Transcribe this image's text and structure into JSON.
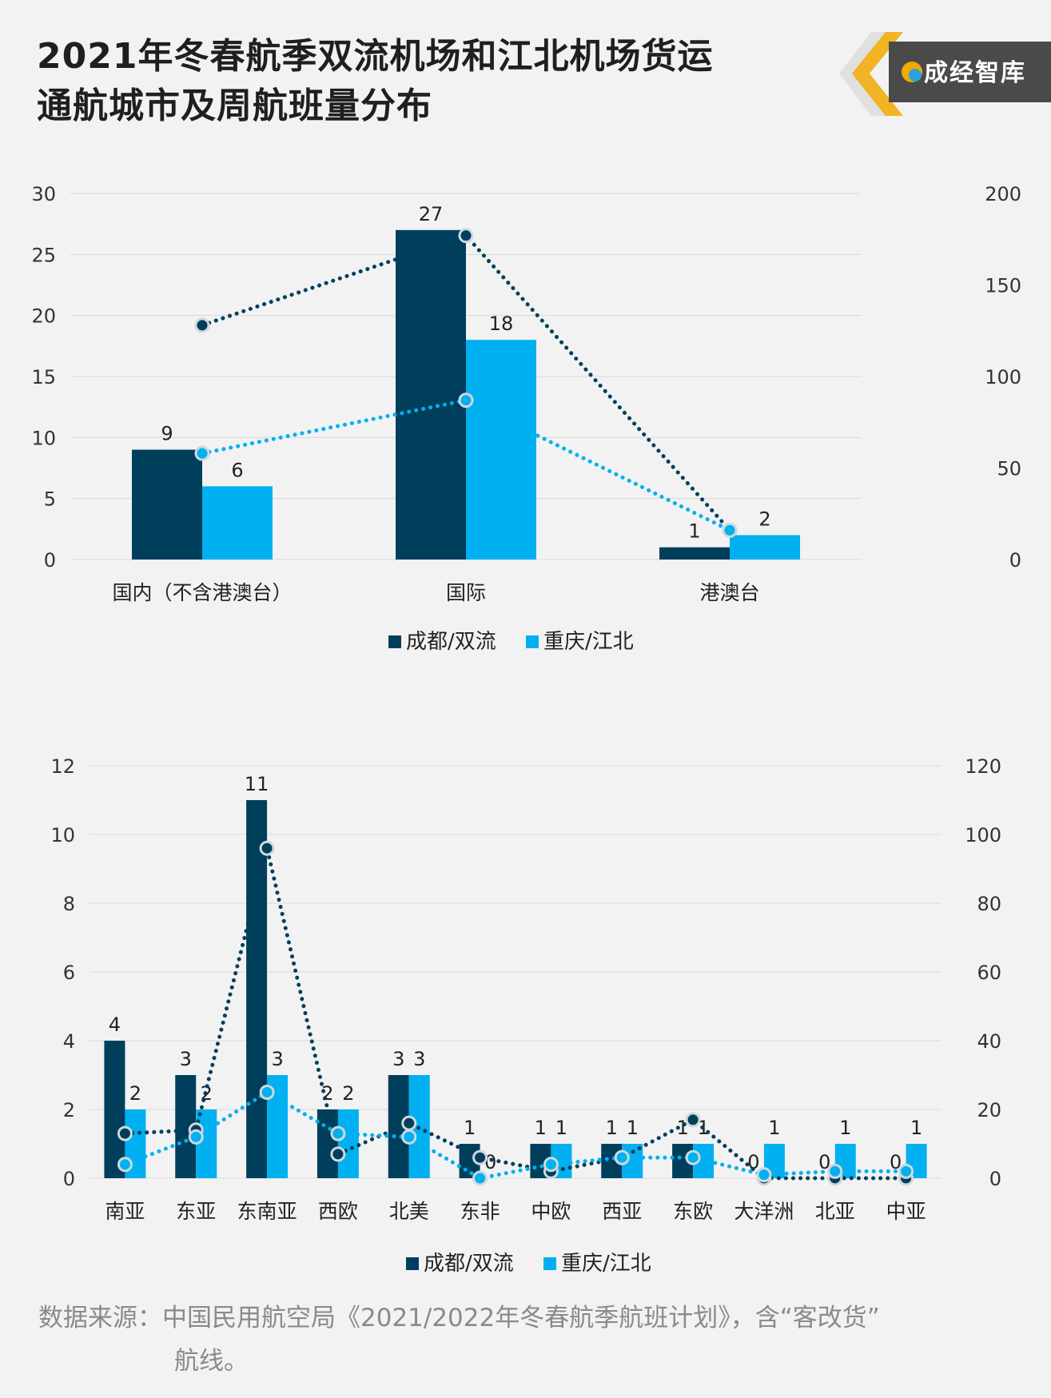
{
  "title_line1": "2021年冬春航季双流机场和江北机场货运",
  "title_line2": "通航城市及周航班量分布",
  "logo_text": "成经智库",
  "source_line1": "数据来源：中国民用航空局《2021/2022年冬春航季航班计划》，含“客改货”",
  "source_line2": "航线。",
  "colors": {
    "chengdu": "#003f5c",
    "chongqing": "#00b0f0"
  },
  "chart_data": [
    {
      "type": "bar",
      "categories": [
        "国内（不含港澳台）",
        "国际",
        "港澳台"
      ],
      "series": [
        {
          "name": "成都/双流",
          "values": [
            9,
            27,
            1
          ]
        },
        {
          "name": "重庆/江北",
          "values": [
            6,
            18,
            2
          ]
        }
      ],
      "line_series": [
        {
          "values": [
            128,
            177,
            16
          ]
        },
        {
          "values": [
            58,
            87,
            16
          ]
        }
      ],
      "ylim": [
        0,
        30
      ],
      "yticks": [
        "0",
        "5",
        "10",
        "15",
        "20",
        "25",
        "30"
      ],
      "y2lim": [
        0,
        200
      ],
      "y2ticks": [
        "0",
        "50",
        "100",
        "150",
        "200"
      ],
      "legend": [
        "成都/双流",
        "重庆/江北"
      ],
      "legend_position": "bottom",
      "grid": true
    },
    {
      "type": "bar",
      "categories": [
        "南亚",
        "东亚",
        "东南亚",
        "西欧",
        "北美",
        "东非",
        "中欧",
        "西亚",
        "东欧",
        "大洋洲",
        "北亚",
        "中亚"
      ],
      "series": [
        {
          "name": "成都/双流",
          "values": [
            4,
            3,
            11,
            2,
            3,
            1,
            1,
            1,
            1,
            0,
            0,
            0
          ]
        },
        {
          "name": "重庆/江北",
          "values": [
            2,
            2,
            3,
            2,
            3,
            0,
            1,
            1,
            1,
            1,
            1,
            1
          ]
        }
      ],
      "line_series": [
        {
          "values": [
            13,
            14,
            96,
            7,
            16,
            6,
            2,
            6,
            17,
            0,
            0,
            0
          ]
        },
        {
          "values": [
            4,
            12,
            25,
            13,
            12,
            0,
            4,
            6,
            6,
            1,
            2,
            2
          ]
        }
      ],
      "ylim": [
        0,
        12
      ],
      "yticks": [
        "0",
        "2",
        "4",
        "6",
        "8",
        "10",
        "12"
      ],
      "y2lim": [
        0,
        120
      ],
      "y2ticks": [
        "0",
        "20",
        "40",
        "60",
        "80",
        "100",
        "120"
      ],
      "legend": [
        "成都/双流",
        "重庆/江北"
      ],
      "legend_position": "bottom",
      "grid": true
    }
  ]
}
